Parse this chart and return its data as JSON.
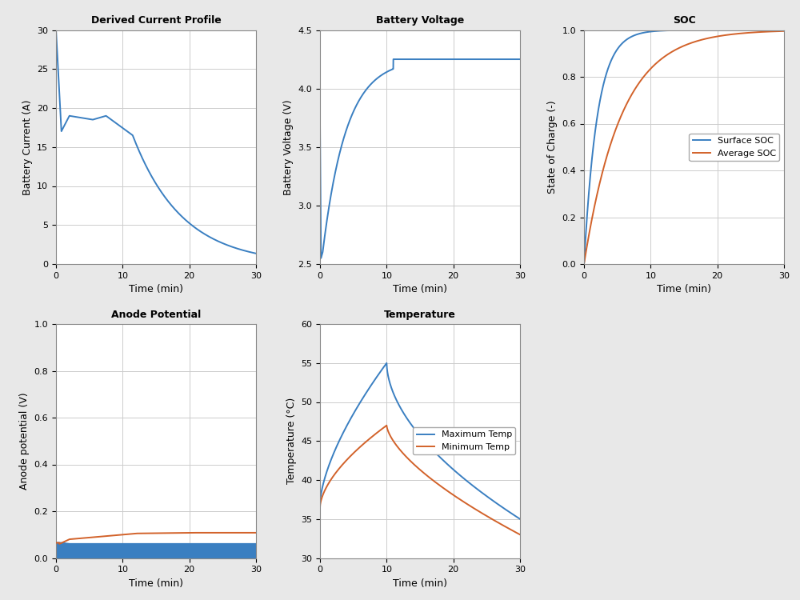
{
  "blue_color": "#3A7FC1",
  "orange_color": "#D2622A",
  "background_color": "#FFFFFF",
  "grid_color": "#CCCCCC",
  "fig_bg": "#E8E8E8",
  "plot1": {
    "title": "Derived Current Profile",
    "xlabel": "Time (min)",
    "ylabel": "Battery Current (A)",
    "xlim": [
      0,
      30
    ],
    "ylim": [
      0,
      30
    ],
    "yticks": [
      0,
      5,
      10,
      15,
      20,
      25,
      30
    ],
    "xticks": [
      0,
      10,
      20,
      30
    ]
  },
  "plot2": {
    "title": "Battery Voltage",
    "xlabel": "Time (min)",
    "ylabel": "Battery Voltage (V)",
    "xlim": [
      0,
      30
    ],
    "ylim": [
      2.5,
      4.5
    ],
    "yticks": [
      2.5,
      3.0,
      3.5,
      4.0,
      4.5
    ],
    "xticks": [
      0,
      10,
      20,
      30
    ]
  },
  "plot3": {
    "title": "SOC",
    "xlabel": "Time (min)",
    "ylabel": "State of Charge (-)",
    "xlim": [
      0,
      30
    ],
    "ylim": [
      0,
      1
    ],
    "yticks": [
      0,
      0.2,
      0.4,
      0.6,
      0.8,
      1.0
    ],
    "xticks": [
      0,
      10,
      20,
      30
    ],
    "legend": [
      "Surface SOC",
      "Average SOC"
    ]
  },
  "plot4": {
    "title": "Anode Potential",
    "xlabel": "Time (min)",
    "ylabel": "Anode potential (V)",
    "xlim": [
      0,
      30
    ],
    "ylim": [
      0,
      1
    ],
    "yticks": [
      0,
      0.2,
      0.4,
      0.6,
      0.8,
      1.0
    ],
    "xticks": [
      0,
      10,
      20,
      30
    ]
  },
  "plot5": {
    "title": "Temperature",
    "xlabel": "Time (min)",
    "ylabel": "Temperature (°C)",
    "xlim": [
      0,
      30
    ],
    "ylim": [
      30,
      60
    ],
    "yticks": [
      30,
      35,
      40,
      45,
      50,
      55,
      60
    ],
    "xticks": [
      0,
      10,
      20,
      30
    ],
    "legend": [
      "Maximum Temp",
      "Minimum Temp"
    ]
  }
}
